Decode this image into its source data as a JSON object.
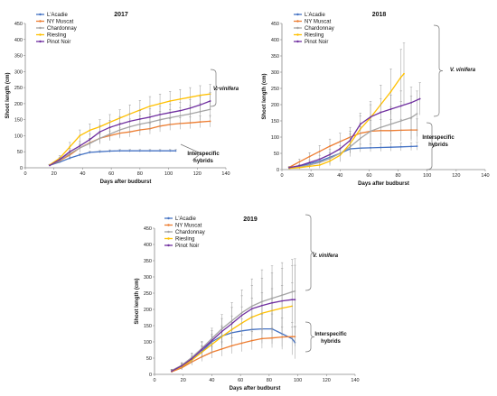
{
  "chart_data": [
    {
      "type": "line",
      "title": "2017",
      "xlabel": "Days after budburst",
      "ylabel": "Shoot length (cm)",
      "xlim": [
        0,
        140
      ],
      "ylim": [
        0,
        450
      ],
      "xticks": [
        "0",
        "20",
        "40",
        "60",
        "80",
        "100",
        "120",
        "140"
      ],
      "yticks": [
        "0",
        "50",
        "100",
        "150",
        "200",
        "250",
        "300",
        "350",
        "400",
        "450"
      ],
      "series": [
        {
          "name": "L'Acadie",
          "color": "#4472C4",
          "x": [
            17,
            24,
            31,
            38,
            45,
            52,
            59,
            66,
            73,
            80,
            87,
            94,
            101,
            105
          ],
          "y": [
            8,
            18,
            30,
            40,
            48,
            50,
            52,
            53,
            53,
            53,
            53,
            53,
            53,
            53
          ],
          "err": [
            2,
            3,
            4,
            4,
            4,
            4,
            4,
            4,
            4,
            4,
            4,
            4,
            4,
            4
          ]
        },
        {
          "name": "NY Muscat",
          "color": "#ED7D31",
          "x": [
            17,
            24,
            31,
            38,
            45,
            52,
            59,
            66,
            73,
            80,
            87,
            94,
            101,
            108,
            115,
            122,
            129
          ],
          "y": [
            8,
            22,
            40,
            62,
            78,
            92,
            100,
            108,
            112,
            118,
            122,
            130,
            135,
            138,
            140,
            143,
            145
          ],
          "err": [
            2,
            5,
            8,
            10,
            12,
            14,
            15,
            16,
            16,
            17,
            17,
            18,
            18,
            18,
            18,
            18,
            18
          ]
        },
        {
          "name": "Chardonnay",
          "color": "#A5A5A5",
          "x": [
            17,
            24,
            31,
            38,
            45,
            52,
            59,
            66,
            73,
            80,
            87,
            94,
            101,
            108,
            115,
            122,
            129
          ],
          "y": [
            8,
            24,
            44,
            62,
            76,
            92,
            105,
            118,
            128,
            136,
            142,
            150,
            156,
            162,
            168,
            175,
            182
          ],
          "err": [
            2,
            6,
            10,
            14,
            16,
            18,
            20,
            22,
            24,
            25,
            26,
            26,
            26,
            26,
            26,
            26,
            26
          ]
        },
        {
          "name": "Riesling",
          "color": "#FFC000",
          "x": [
            17,
            24,
            31,
            38,
            45,
            52,
            59,
            66,
            73,
            80,
            87,
            94,
            101,
            108,
            115,
            122,
            129
          ],
          "y": [
            9,
            30,
            65,
            100,
            117,
            128,
            142,
            155,
            168,
            180,
            192,
            200,
            208,
            214,
            220,
            226,
            230
          ],
          "err": [
            2,
            8,
            14,
            18,
            20,
            22,
            24,
            26,
            28,
            30,
            30,
            30,
            30,
            30,
            30,
            30,
            30
          ]
        },
        {
          "name": "Pinot Noir",
          "color": "#7030A0",
          "x": [
            17,
            24,
            31,
            38,
            45,
            52,
            59,
            66,
            73,
            80,
            87,
            94,
            101,
            108,
            115,
            122,
            129
          ],
          "y": [
            7,
            26,
            50,
            68,
            88,
            112,
            126,
            136,
            145,
            152,
            158,
            166,
            172,
            178,
            186,
            196,
            208
          ],
          "err": [
            2,
            6,
            10,
            14,
            18,
            20,
            22,
            24,
            24,
            26,
            26,
            26,
            26,
            26,
            26,
            26,
            26
          ]
        }
      ],
      "legend": "top-left",
      "annotations": [
        "V. vinifera",
        "Interspecific hybrids"
      ]
    },
    {
      "type": "line",
      "title": "2018",
      "xlabel": "Days after budburst",
      "ylabel": "Shoot length (cm)",
      "xlim": [
        0,
        140
      ],
      "ylim": [
        0,
        450
      ],
      "xticks": [
        "0",
        "20",
        "40",
        "60",
        "80",
        "100",
        "120",
        "140"
      ],
      "yticks": [
        "0",
        "50",
        "100",
        "150",
        "200",
        "250",
        "300",
        "350",
        "400",
        "450"
      ],
      "series": [
        {
          "name": "L'Acadie",
          "color": "#4472C4",
          "x": [
            5,
            12,
            19,
            26,
            33,
            40,
            47,
            54,
            61,
            68,
            75,
            82,
            89,
            93
          ],
          "y": [
            5,
            10,
            18,
            26,
            38,
            50,
            64,
            66,
            67,
            68,
            69,
            70,
            71,
            72
          ],
          "err": [
            2,
            3,
            4,
            6,
            8,
            10,
            12,
            12,
            12,
            12,
            12,
            12,
            12,
            12
          ]
        },
        {
          "name": "NY Muscat",
          "color": "#ED7D31",
          "x": [
            5,
            12,
            19,
            26,
            33,
            40,
            47,
            54,
            61,
            68,
            75,
            82,
            89,
            93
          ],
          "y": [
            7,
            24,
            40,
            56,
            72,
            86,
            100,
            112,
            118,
            120,
            120,
            121,
            122,
            122
          ],
          "err": [
            3,
            8,
            12,
            18,
            22,
            26,
            30,
            32,
            34,
            34,
            34,
            34,
            34,
            34
          ]
        },
        {
          "name": "Chardonnay",
          "color": "#A5A5A5",
          "x": [
            5,
            12,
            19,
            26,
            33,
            40,
            47,
            54,
            61,
            68,
            75,
            82,
            89,
            93
          ],
          "y": [
            4,
            8,
            14,
            22,
            34,
            50,
            70,
            96,
            118,
            130,
            140,
            150,
            160,
            172
          ],
          "err": [
            2,
            4,
            8,
            12,
            18,
            24,
            30,
            36,
            42,
            48,
            54,
            60,
            66,
            70
          ]
        },
        {
          "name": "Riesling",
          "color": "#FFC000",
          "x": [
            5,
            12,
            19,
            26,
            33,
            40,
            47,
            54,
            61,
            68,
            75,
            82,
            84
          ],
          "y": [
            4,
            6,
            10,
            14,
            26,
            44,
            80,
            125,
            160,
            200,
            240,
            285,
            295
          ],
          "err": [
            2,
            4,
            6,
            10,
            14,
            20,
            30,
            40,
            50,
            60,
            70,
            85,
            95
          ]
        },
        {
          "name": "Pinot Noir",
          "color": "#7030A0",
          "x": [
            5,
            12,
            19,
            26,
            33,
            40,
            47,
            54,
            61,
            68,
            75,
            82,
            89,
            95
          ],
          "y": [
            6,
            12,
            22,
            32,
            46,
            64,
            90,
            140,
            162,
            176,
            186,
            196,
            206,
            218
          ],
          "err": [
            2,
            4,
            8,
            12,
            16,
            22,
            28,
            34,
            38,
            42,
            44,
            46,
            48,
            50
          ]
        }
      ],
      "legend": "top-left",
      "annotations": [
        "V. vinifera",
        "Interspecific hybrids"
      ]
    },
    {
      "type": "line",
      "title": "2019",
      "xlabel": "Days after budburst",
      "ylabel": "Shoot length (cm)",
      "xlim": [
        0,
        140
      ],
      "ylim": [
        0,
        450
      ],
      "xticks": [
        "0",
        "20",
        "40",
        "60",
        "80",
        "100",
        "120",
        "140"
      ],
      "yticks": [
        "0",
        "50",
        "100",
        "150",
        "200",
        "250",
        "300",
        "350",
        "400",
        "450"
      ],
      "series": [
        {
          "name": "L'Acadie",
          "color": "#4472C4",
          "x": [
            12,
            19,
            26,
            33,
            40,
            47,
            54,
            61,
            68,
            75,
            82,
            89,
            96,
            98
          ],
          "y": [
            10,
            22,
            44,
            70,
            100,
            118,
            128,
            134,
            138,
            140,
            140,
            125,
            110,
            98
          ],
          "err": [
            4,
            8,
            12,
            18,
            24,
            28,
            32,
            36,
            40,
            44,
            46,
            48,
            50,
            50
          ]
        },
        {
          "name": "NY Muscat",
          "color": "#ED7D31",
          "x": [
            12,
            19,
            26,
            33,
            40,
            47,
            54,
            61,
            68,
            75,
            82,
            89,
            96,
            98
          ],
          "y": [
            8,
            20,
            38,
            54,
            68,
            78,
            88,
            96,
            104,
            110,
            112,
            115,
            116,
            116
          ],
          "err": [
            3,
            6,
            10,
            14,
            18,
            22,
            24,
            26,
            28,
            30,
            30,
            30,
            30,
            30
          ]
        },
        {
          "name": "Chardonnay",
          "color": "#A5A5A5",
          "x": [
            12,
            19,
            26,
            33,
            40,
            47,
            54,
            61,
            68,
            75,
            82,
            89,
            96,
            98
          ],
          "y": [
            12,
            28,
            52,
            80,
            110,
            140,
            165,
            190,
            210,
            224,
            234,
            244,
            254,
            256
          ],
          "err": [
            4,
            8,
            14,
            22,
            32,
            44,
            56,
            70,
            84,
            98,
            100,
            100,
            100,
            100
          ]
        },
        {
          "name": "Riesling",
          "color": "#FFC000",
          "x": [
            12,
            19,
            26,
            33,
            40,
            47,
            54,
            61,
            68,
            75,
            82,
            89,
            96
          ],
          "y": [
            10,
            24,
            44,
            68,
            92,
            116,
            138,
            158,
            176,
            188,
            196,
            204,
            210
          ],
          "err": [
            4,
            8,
            12,
            18,
            26,
            34,
            42,
            50,
            58,
            64,
            68,
            70,
            72
          ]
        },
        {
          "name": "Pinot Noir",
          "color": "#7030A0",
          "x": [
            12,
            19,
            26,
            33,
            40,
            47,
            54,
            61,
            68,
            75,
            82,
            89,
            96,
            98
          ],
          "y": [
            10,
            26,
            48,
            76,
            104,
            132,
            156,
            182,
            202,
            212,
            220,
            226,
            230,
            230
          ],
          "err": [
            4,
            8,
            14,
            22,
            30,
            40,
            50,
            60,
            72,
            84,
            92,
            100,
            104,
            106
          ]
        }
      ],
      "legend": "top-left",
      "annotations": [
        "V. vinifera",
        "Interspecific hybrids"
      ]
    }
  ]
}
